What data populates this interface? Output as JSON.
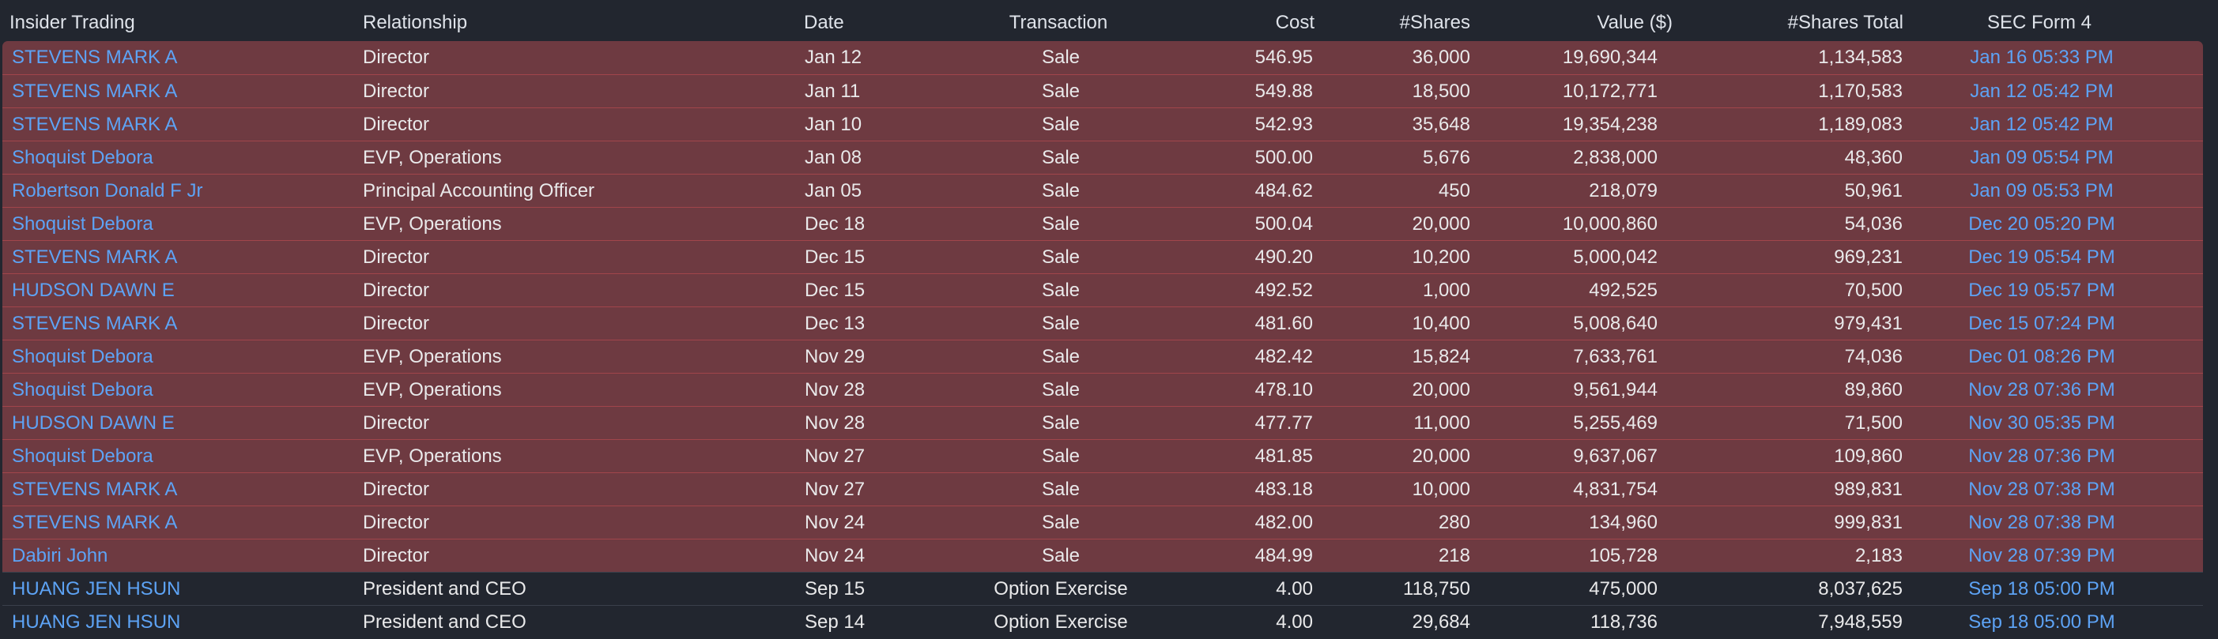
{
  "header": {
    "insider": "Insider Trading",
    "relationship": "Relationship",
    "date": "Date",
    "transaction": "Transaction",
    "cost": "Cost",
    "shares": "#Shares",
    "value": "Value ($)",
    "shares_total": "#Shares Total",
    "sec_form": "SEC Form 4"
  },
  "colors": {
    "background": "#22262f",
    "sale_row": "#6e3a41",
    "sale_border": "#a1454b",
    "link": "#5da3f5",
    "text": "#e9e9ea"
  },
  "rows": [
    {
      "type": "sale",
      "insider": "STEVENS MARK A",
      "relationship": "Director",
      "date": "Jan 12",
      "transaction": "Sale",
      "cost": "546.95",
      "shares": "36,000",
      "value": "19,690,344",
      "shares_total": "1,134,583",
      "sec_form": "Jan 16 05:33 PM"
    },
    {
      "type": "sale",
      "insider": "STEVENS MARK A",
      "relationship": "Director",
      "date": "Jan 11",
      "transaction": "Sale",
      "cost": "549.88",
      "shares": "18,500",
      "value": "10,172,771",
      "shares_total": "1,170,583",
      "sec_form": "Jan 12 05:42 PM"
    },
    {
      "type": "sale",
      "insider": "STEVENS MARK A",
      "relationship": "Director",
      "date": "Jan 10",
      "transaction": "Sale",
      "cost": "542.93",
      "shares": "35,648",
      "value": "19,354,238",
      "shares_total": "1,189,083",
      "sec_form": "Jan 12 05:42 PM"
    },
    {
      "type": "sale",
      "insider": "Shoquist Debora",
      "relationship": "EVP, Operations",
      "date": "Jan 08",
      "transaction": "Sale",
      "cost": "500.00",
      "shares": "5,676",
      "value": "2,838,000",
      "shares_total": "48,360",
      "sec_form": "Jan 09 05:54 PM"
    },
    {
      "type": "sale",
      "insider": "Robertson Donald F Jr",
      "relationship": "Principal Accounting Officer",
      "date": "Jan 05",
      "transaction": "Sale",
      "cost": "484.62",
      "shares": "450",
      "value": "218,079",
      "shares_total": "50,961",
      "sec_form": "Jan 09 05:53 PM"
    },
    {
      "type": "sale",
      "insider": "Shoquist Debora",
      "relationship": "EVP, Operations",
      "date": "Dec 18",
      "transaction": "Sale",
      "cost": "500.04",
      "shares": "20,000",
      "value": "10,000,860",
      "shares_total": "54,036",
      "sec_form": "Dec 20 05:20 PM"
    },
    {
      "type": "sale",
      "insider": "STEVENS MARK A",
      "relationship": "Director",
      "date": "Dec 15",
      "transaction": "Sale",
      "cost": "490.20",
      "shares": "10,200",
      "value": "5,000,042",
      "shares_total": "969,231",
      "sec_form": "Dec 19 05:54 PM"
    },
    {
      "type": "sale",
      "insider": "HUDSON DAWN E",
      "relationship": "Director",
      "date": "Dec 15",
      "transaction": "Sale",
      "cost": "492.52",
      "shares": "1,000",
      "value": "492,525",
      "shares_total": "70,500",
      "sec_form": "Dec 19 05:57 PM"
    },
    {
      "type": "sale",
      "insider": "STEVENS MARK A",
      "relationship": "Director",
      "date": "Dec 13",
      "transaction": "Sale",
      "cost": "481.60",
      "shares": "10,400",
      "value": "5,008,640",
      "shares_total": "979,431",
      "sec_form": "Dec 15 07:24 PM"
    },
    {
      "type": "sale",
      "insider": "Shoquist Debora",
      "relationship": "EVP, Operations",
      "date": "Nov 29",
      "transaction": "Sale",
      "cost": "482.42",
      "shares": "15,824",
      "value": "7,633,761",
      "shares_total": "74,036",
      "sec_form": "Dec 01 08:26 PM"
    },
    {
      "type": "sale",
      "insider": "Shoquist Debora",
      "relationship": "EVP, Operations",
      "date": "Nov 28",
      "transaction": "Sale",
      "cost": "478.10",
      "shares": "20,000",
      "value": "9,561,944",
      "shares_total": "89,860",
      "sec_form": "Nov 28 07:36 PM"
    },
    {
      "type": "sale",
      "insider": "HUDSON DAWN E",
      "relationship": "Director",
      "date": "Nov 28",
      "transaction": "Sale",
      "cost": "477.77",
      "shares": "11,000",
      "value": "5,255,469",
      "shares_total": "71,500",
      "sec_form": "Nov 30 05:35 PM"
    },
    {
      "type": "sale",
      "insider": "Shoquist Debora",
      "relationship": "EVP, Operations",
      "date": "Nov 27",
      "transaction": "Sale",
      "cost": "481.85",
      "shares": "20,000",
      "value": "9,637,067",
      "shares_total": "109,860",
      "sec_form": "Nov 28 07:36 PM"
    },
    {
      "type": "sale",
      "insider": "STEVENS MARK A",
      "relationship": "Director",
      "date": "Nov 27",
      "transaction": "Sale",
      "cost": "483.18",
      "shares": "10,000",
      "value": "4,831,754",
      "shares_total": "989,831",
      "sec_form": "Nov 28 07:38 PM"
    },
    {
      "type": "sale",
      "insider": "STEVENS MARK A",
      "relationship": "Director",
      "date": "Nov 24",
      "transaction": "Sale",
      "cost": "482.00",
      "shares": "280",
      "value": "134,960",
      "shares_total": "999,831",
      "sec_form": "Nov 28 07:38 PM"
    },
    {
      "type": "sale",
      "insider": "Dabiri John",
      "relationship": "Director",
      "date": "Nov 24",
      "transaction": "Sale",
      "cost": "484.99",
      "shares": "218",
      "value": "105,728",
      "shares_total": "2,183",
      "sec_form": "Nov 28 07:39 PM"
    },
    {
      "type": "option",
      "insider": "HUANG JEN HSUN",
      "relationship": "President and CEO",
      "date": "Sep 15",
      "transaction": "Option Exercise",
      "cost": "4.00",
      "shares": "118,750",
      "value": "475,000",
      "shares_total": "8,037,625",
      "sec_form": "Sep 18 05:00 PM"
    },
    {
      "type": "option",
      "insider": "HUANG JEN HSUN",
      "relationship": "President and CEO",
      "date": "Sep 14",
      "transaction": "Option Exercise",
      "cost": "4.00",
      "shares": "29,684",
      "value": "118,736",
      "shares_total": "7,948,559",
      "sec_form": "Sep 18 05:00 PM"
    }
  ]
}
